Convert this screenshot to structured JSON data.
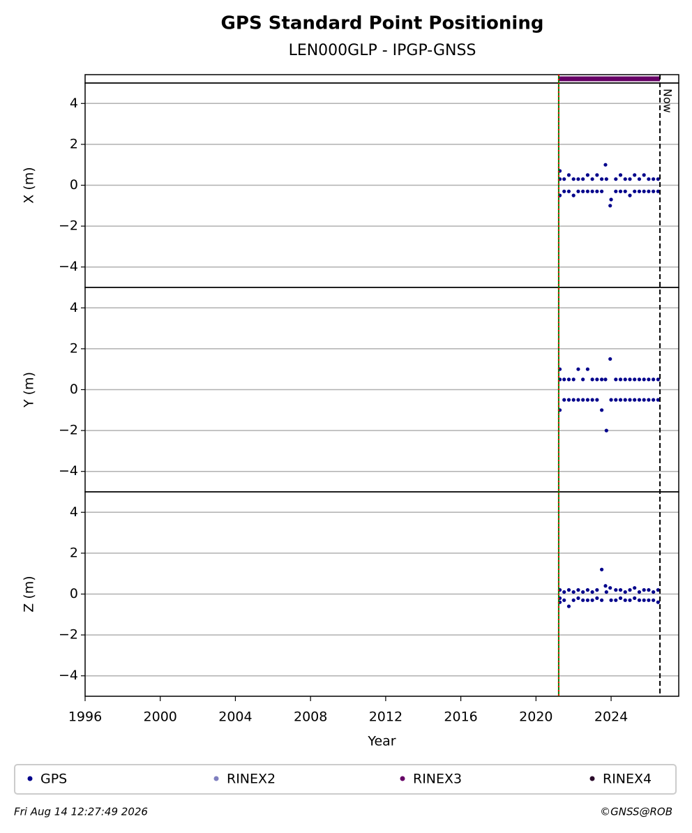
{
  "title": "GPS Standard Point Positioning",
  "subtitle": "LEN000GLP - IPGP-GNSS",
  "footer_left": "Fri Aug 14 12:27:49 2026",
  "footer_right": "©GNSS@ROB",
  "legend": [
    {
      "name": "GPS",
      "color": "#00008b"
    },
    {
      "name": "RINEX2",
      "color": "#7f7fbf"
    },
    {
      "name": "RINEX3",
      "color": "#660066"
    },
    {
      "name": "RINEX4",
      "color": "#2a0a2a"
    }
  ],
  "vlines": [
    {
      "x": 2021.21,
      "color": "#008000",
      "style": "solid"
    },
    {
      "x": 2021.21,
      "color": "#ff0000",
      "style": "dotted"
    },
    {
      "x": 2026.6,
      "color": "#000000",
      "style": "dashed",
      "label": "Now"
    }
  ],
  "chart_data": [
    {
      "type": "scatter",
      "ylabel": "X (m)",
      "xlim": [
        1996,
        2027.6
      ],
      "ylim": [
        -5,
        5
      ],
      "yticks": [
        {
          "value": -4,
          "label": "−4"
        },
        {
          "value": -2,
          "label": "−2"
        },
        0,
        2,
        4
      ],
      "grid": true,
      "availability": {
        "color": "#660066",
        "x": [
          2021.21,
          2026.6
        ]
      },
      "series": [
        {
          "name": "GPS",
          "color": "#00008b",
          "x": [
            2021.27,
            2021.27,
            2021.27,
            2021.5,
            2021.5,
            2021.75,
            2021.75,
            2022.0,
            2022.0,
            2022.25,
            2022.25,
            2022.5,
            2022.5,
            2022.75,
            2022.75,
            2023.0,
            2023.0,
            2023.25,
            2023.25,
            2023.5,
            2023.5,
            2023.7,
            2023.75,
            2023.95,
            2024.0,
            2024.25,
            2024.25,
            2024.5,
            2024.5,
            2024.75,
            2024.75,
            2025.0,
            2025.0,
            2025.25,
            2025.25,
            2025.5,
            2025.5,
            2025.75,
            2025.75,
            2026.0,
            2026.0,
            2026.25,
            2026.25,
            2026.5,
            2026.5
          ],
          "values": [
            0.7,
            0.3,
            -0.5,
            0.3,
            -0.3,
            0.5,
            -0.3,
            0.3,
            -0.5,
            0.3,
            -0.3,
            0.3,
            -0.3,
            0.5,
            -0.3,
            0.3,
            -0.3,
            0.5,
            -0.3,
            0.3,
            -0.3,
            1.0,
            0.3,
            -1.0,
            -0.7,
            0.3,
            -0.3,
            0.5,
            -0.3,
            0.3,
            -0.3,
            0.3,
            -0.5,
            0.5,
            -0.3,
            0.3,
            -0.3,
            0.5,
            -0.3,
            0.3,
            -0.3,
            0.3,
            -0.3,
            0.3,
            -0.3
          ]
        }
      ]
    },
    {
      "type": "scatter",
      "ylabel": "Y (m)",
      "xlim": [
        1996,
        2027.6
      ],
      "ylim": [
        -5,
        5
      ],
      "yticks": [
        {
          "value": -4,
          "label": "−4"
        },
        {
          "value": -2,
          "label": "−2"
        },
        0,
        2,
        4
      ],
      "grid": true,
      "series": [
        {
          "name": "GPS",
          "color": "#00008b",
          "x": [
            2021.27,
            2021.27,
            2021.27,
            2021.5,
            2021.5,
            2021.75,
            2021.75,
            2022.0,
            2022.0,
            2022.25,
            2022.25,
            2022.5,
            2022.5,
            2022.75,
            2022.75,
            2023.0,
            2023.0,
            2023.25,
            2023.25,
            2023.5,
            2023.5,
            2023.7,
            2023.75,
            2023.95,
            2024.0,
            2024.25,
            2024.25,
            2024.5,
            2024.5,
            2024.75,
            2024.75,
            2025.0,
            2025.0,
            2025.25,
            2025.25,
            2025.5,
            2025.5,
            2025.75,
            2025.75,
            2026.0,
            2026.0,
            2026.25,
            2026.25,
            2026.5,
            2026.5
          ],
          "values": [
            1.0,
            0.5,
            -1.0,
            0.5,
            -0.5,
            0.5,
            -0.5,
            0.5,
            -0.5,
            1.0,
            -0.5,
            0.5,
            -0.5,
            1.0,
            -0.5,
            0.5,
            -0.5,
            0.5,
            -0.5,
            0.5,
            -1.0,
            0.5,
            -2.0,
            1.5,
            -0.5,
            0.5,
            -0.5,
            0.5,
            -0.5,
            0.5,
            -0.5,
            0.5,
            -0.5,
            0.5,
            -0.5,
            0.5,
            -0.5,
            0.5,
            -0.5,
            0.5,
            -0.5,
            0.5,
            -0.5,
            0.5,
            -0.5
          ]
        }
      ]
    },
    {
      "type": "scatter",
      "ylabel": "Z (m)",
      "xlabel": "Year",
      "xlim": [
        1996,
        2027.6
      ],
      "ylim": [
        -5,
        5
      ],
      "xticks": [
        1996,
        2000,
        2004,
        2008,
        2012,
        2016,
        2020,
        2024
      ],
      "yticks": [
        {
          "value": -4,
          "label": "−4"
        },
        {
          "value": -2,
          "label": "−2"
        },
        0,
        2,
        4
      ],
      "grid": true,
      "series": [
        {
          "name": "GPS",
          "color": "#00008b",
          "x": [
            2021.27,
            2021.27,
            2021.27,
            2021.5,
            2021.5,
            2021.75,
            2021.75,
            2022.0,
            2022.0,
            2022.25,
            2022.25,
            2022.5,
            2022.5,
            2022.75,
            2022.75,
            2023.0,
            2023.0,
            2023.25,
            2023.25,
            2023.5,
            2023.5,
            2023.7,
            2023.75,
            2023.95,
            2024.0,
            2024.25,
            2024.25,
            2024.5,
            2024.5,
            2024.75,
            2024.75,
            2025.0,
            2025.0,
            2025.25,
            2025.25,
            2025.5,
            2025.5,
            2025.75,
            2025.75,
            2026.0,
            2026.0,
            2026.25,
            2026.25,
            2026.5,
            2026.5
          ],
          "values": [
            0.2,
            -0.2,
            -0.4,
            0.1,
            -0.3,
            0.2,
            -0.6,
            0.1,
            -0.3,
            0.2,
            -0.2,
            0.1,
            -0.3,
            0.2,
            -0.3,
            0.1,
            -0.3,
            0.2,
            -0.2,
            1.2,
            -0.3,
            0.4,
            0.1,
            0.3,
            -0.3,
            0.2,
            -0.3,
            0.2,
            -0.2,
            0.1,
            -0.3,
            0.2,
            -0.3,
            0.3,
            -0.2,
            0.1,
            -0.3,
            0.2,
            -0.3,
            0.2,
            -0.3,
            0.1,
            -0.3,
            0.2,
            -0.4
          ]
        }
      ]
    }
  ]
}
